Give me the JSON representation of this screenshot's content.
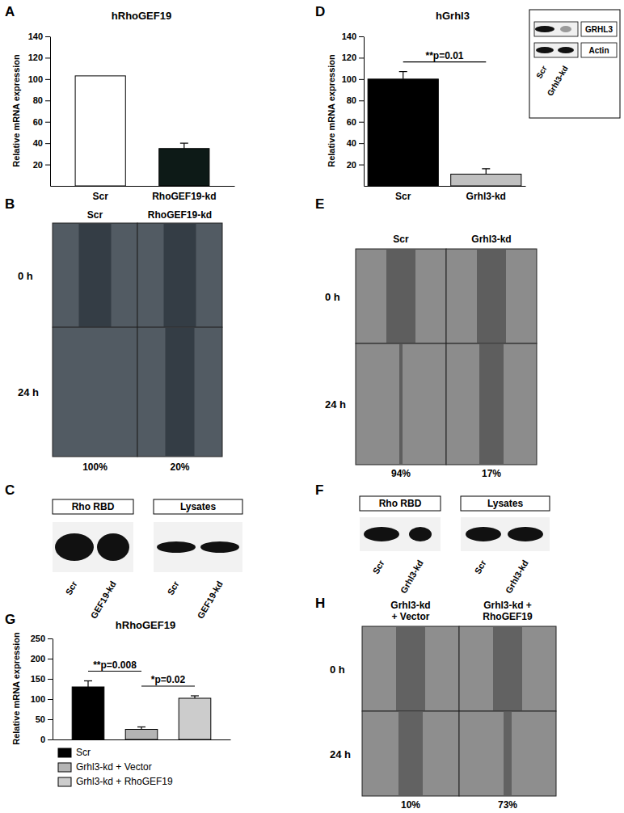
{
  "chart_data": [
    {
      "type": "bar",
      "panel_label": "A",
      "title": "hRhoGEF19",
      "y_label": "Relative mRNA expression",
      "categories": [
        "Scr",
        "RhoGEF19-kd"
      ],
      "values": [
        103,
        35
      ],
      "errors": [
        null,
        5
      ],
      "colors": [
        "#ffffff",
        "#0d1a17"
      ],
      "ylim": [
        0,
        140
      ],
      "yticks": [
        20,
        40,
        60,
        80,
        100,
        120,
        140
      ]
    },
    {
      "type": "bar",
      "panel_label": "D",
      "title": "hGrhl3",
      "y_label": "Relative mRNA expression",
      "categories": [
        "Scr",
        "Grhl3-kd"
      ],
      "values": [
        100,
        11
      ],
      "errors": [
        7,
        5
      ],
      "colors": [
        "#000000",
        "#c0c0c0"
      ],
      "ylim": [
        0,
        140
      ],
      "yticks": [
        20,
        40,
        60,
        80,
        100,
        120,
        140
      ],
      "annotations": [
        "**p=0.01"
      ]
    },
    {
      "type": "bar",
      "panel_label": "G",
      "title": "hRhoGEF19",
      "y_label": "Relative mRNA expression",
      "categories": [
        null
      ],
      "series": [
        {
          "name": "Scr",
          "color": "#000000",
          "values": [
            130
          ],
          "errors": [
            15
          ]
        },
        {
          "name": "Grhl3-kd + Vector",
          "color": "#b4b4b4",
          "values": [
            25
          ],
          "errors": [
            6
          ]
        },
        {
          "name": "Grhl3-kd + RhoGEF19",
          "color": "#cccccc",
          "values": [
            102
          ],
          "errors": [
            6
          ]
        }
      ],
      "ylim": [
        0,
        250
      ],
      "yticks": [
        0,
        50,
        100,
        150,
        200,
        250
      ],
      "legend": "bottom",
      "annotations": [
        "**p=0.008",
        "*p=0.02"
      ]
    }
  ],
  "panels": {
    "B": {
      "panel_label": "B",
      "columns": [
        [
          "Scr"
        ],
        [
          "RhoGEF19-kd"
        ]
      ],
      "rows": [
        "0 h",
        "24 h"
      ],
      "percentages": [
        "100%",
        "20%"
      ]
    },
    "C": {
      "panel_label": "C",
      "blots": [
        {
          "title": "Rho RBD",
          "lanes": [
            "Scr",
            "GEF19-kd"
          ]
        },
        {
          "title": "Lysates",
          "lanes": [
            "Scr",
            "GEF19-kd"
          ]
        }
      ]
    },
    "D_inset": {
      "rows": [
        "GRHL3",
        "Actin"
      ],
      "lanes": [
        "Scr",
        "Grhl3-kd"
      ]
    },
    "E": {
      "panel_label": "E",
      "columns": [
        [
          "Scr"
        ],
        [
          "Grhl3-kd"
        ]
      ],
      "rows": [
        "0 h",
        "24 h"
      ],
      "percentages": [
        "94%",
        "17%"
      ]
    },
    "F": {
      "panel_label": "F",
      "blots": [
        {
          "title": "Rho RBD",
          "lanes": [
            "Scr",
            "Grhl3-kd"
          ]
        },
        {
          "title": "Lysates",
          "lanes": [
            "Scr",
            "Grhl3-kd"
          ]
        }
      ]
    },
    "H": {
      "panel_label": "H",
      "columns": [
        [
          "Grhl3-kd",
          "+ Vector"
        ],
        [
          "Grhl3-kd +",
          "RhoGEF19"
        ]
      ],
      "rows": [
        "0 h",
        "24 h"
      ],
      "percentages": [
        "10%",
        "73%"
      ]
    }
  }
}
